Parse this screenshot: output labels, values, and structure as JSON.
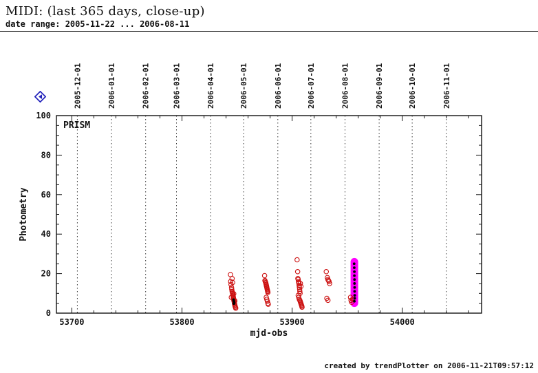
{
  "header": {
    "title": "MIDI: (last 365 days, close-up)",
    "subtitle": "date range: 2005-11-22 ... 2006-08-11"
  },
  "nav": {
    "icon": "blue-diamond-back-arrow",
    "color": "#2222bb"
  },
  "footer": {
    "credit": "created by trendPlotter on 2006-11-21T09:57:12"
  },
  "chart_data": {
    "type": "scatter",
    "inner_label": "PRISM",
    "xlabel": "mjd-obs",
    "ylabel": "Photometry",
    "xlim": [
      53686,
      54072
    ],
    "ylim": [
      0,
      100
    ],
    "x_ticks": [
      53700,
      53800,
      53900,
      54000
    ],
    "x_minor_step": 20,
    "y_ticks": [
      0,
      20,
      40,
      60,
      80,
      100
    ],
    "y_minor_step": 5,
    "grid": {
      "style": "dotted-vertical",
      "color": "#333333"
    },
    "top_axis_dates": [
      {
        "label": "2005-12-01",
        "mjd": 53705
      },
      {
        "label": "2006-01-01",
        "mjd": 53736
      },
      {
        "label": "2006-02-01",
        "mjd": 53767
      },
      {
        "label": "2006-03-01",
        "mjd": 53795
      },
      {
        "label": "2006-04-01",
        "mjd": 53826
      },
      {
        "label": "2006-05-01",
        "mjd": 53856
      },
      {
        "label": "2006-06-01",
        "mjd": 53887
      },
      {
        "label": "2006-07-01",
        "mjd": 53917
      },
      {
        "label": "2006-08-01",
        "mjd": 53948
      },
      {
        "label": "2006-09-01",
        "mjd": 53979
      },
      {
        "label": "2006-10-01",
        "mjd": 54009
      },
      {
        "label": "2006-11-01",
        "mjd": 54040
      }
    ],
    "highlights": [
      {
        "x": 53956.5,
        "y_min": 5.0,
        "y_max": 26.0,
        "color": "#ff00ff"
      }
    ],
    "series": [
      {
        "name": "photometry",
        "marker": "open-circle",
        "color": "#cc1111",
        "points": [
          [
            53844.0,
            19.5
          ],
          [
            53844.2,
            16.0
          ],
          [
            53844.5,
            14.5
          ],
          [
            53845.0,
            13.0
          ],
          [
            53845.2,
            12.0
          ],
          [
            53845.5,
            11.0
          ],
          [
            53845.7,
            10.5
          ],
          [
            53846.0,
            10.0
          ],
          [
            53846.2,
            9.5
          ],
          [
            53846.3,
            9.0
          ],
          [
            53846.5,
            8.5
          ],
          [
            53846.6,
            8.0
          ],
          [
            53846.8,
            7.5
          ],
          [
            53847.0,
            7.0
          ],
          [
            53847.1,
            6.5
          ],
          [
            53847.3,
            6.0
          ],
          [
            53847.5,
            5.5
          ],
          [
            53847.6,
            5.0
          ],
          [
            53847.8,
            4.5
          ],
          [
            53848.0,
            4.0
          ],
          [
            53848.2,
            3.5
          ],
          [
            53848.5,
            3.0
          ],
          [
            53848.8,
            2.5
          ],
          [
            53845.5,
            17.5
          ],
          [
            53846.0,
            15.5
          ],
          [
            53844.8,
            8.0
          ],
          [
            53847.0,
            9.8
          ],
          [
            53848.0,
            6.2
          ],
          [
            53875.0,
            19.0
          ],
          [
            53875.3,
            16.5
          ],
          [
            53875.6,
            16.0
          ],
          [
            53876.0,
            15.5
          ],
          [
            53876.2,
            15.0
          ],
          [
            53876.4,
            14.5
          ],
          [
            53876.6,
            14.0
          ],
          [
            53876.8,
            13.5
          ],
          [
            53877.0,
            13.0
          ],
          [
            53877.2,
            12.5
          ],
          [
            53877.4,
            12.0
          ],
          [
            53877.6,
            11.5
          ],
          [
            53877.8,
            11.0
          ],
          [
            53878.0,
            10.5
          ],
          [
            53876.5,
            8.0
          ],
          [
            53877.0,
            7.0
          ],
          [
            53877.5,
            6.0
          ],
          [
            53878.0,
            5.0
          ],
          [
            53878.3,
            4.5
          ],
          [
            53904.5,
            27.0
          ],
          [
            53905.0,
            21.0
          ],
          [
            53905.2,
            17.5
          ],
          [
            53905.5,
            17.0
          ],
          [
            53905.8,
            16.0
          ],
          [
            53906.0,
            15.5
          ],
          [
            53906.2,
            15.0
          ],
          [
            53906.4,
            14.0
          ],
          [
            53906.6,
            13.0
          ],
          [
            53906.8,
            12.0
          ],
          [
            53907.0,
            11.0
          ],
          [
            53907.2,
            10.0
          ],
          [
            53905.5,
            9.0
          ],
          [
            53906.0,
            8.0
          ],
          [
            53906.5,
            7.0
          ],
          [
            53907.0,
            6.5
          ],
          [
            53907.3,
            6.0
          ],
          [
            53907.6,
            5.5
          ],
          [
            53907.9,
            5.0
          ],
          [
            53908.2,
            4.5
          ],
          [
            53908.5,
            4.0
          ],
          [
            53908.8,
            3.5
          ],
          [
            53909.0,
            3.0
          ],
          [
            53907.5,
            15.0
          ],
          [
            53908.0,
            13.5
          ],
          [
            53931.0,
            21.0
          ],
          [
            53932.0,
            18.0
          ],
          [
            53932.5,
            17.0
          ],
          [
            53933.0,
            16.5
          ],
          [
            53933.5,
            16.0
          ],
          [
            53934.0,
            15.0
          ],
          [
            53931.5,
            7.5
          ],
          [
            53932.5,
            6.5
          ],
          [
            53953.0,
            8.0
          ],
          [
            53953.5,
            6.5
          ],
          [
            53954.0,
            5.5
          ],
          [
            53955.0,
            7.0
          ]
        ]
      },
      {
        "name": "latest-photometry",
        "marker": "filled-dot",
        "color": "#000000",
        "points": [
          [
            53846.8,
            6.8
          ],
          [
            53847.0,
            6.2
          ],
          [
            53847.2,
            5.8
          ],
          [
            53847.4,
            5.2
          ],
          [
            53847.1,
            4.8
          ],
          [
            53956.3,
            25.0
          ],
          [
            53956.4,
            23.0
          ],
          [
            53956.5,
            21.0
          ],
          [
            53956.5,
            19.0
          ],
          [
            53956.6,
            17.0
          ],
          [
            53956.6,
            15.0
          ],
          [
            53956.7,
            13.0
          ],
          [
            53956.7,
            11.0
          ],
          [
            53956.8,
            9.0
          ],
          [
            53956.8,
            7.5
          ],
          [
            53956.5,
            6.0
          ]
        ]
      }
    ]
  }
}
